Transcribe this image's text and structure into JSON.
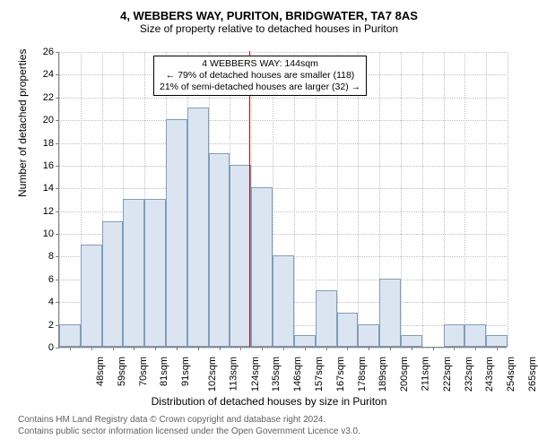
{
  "titles": {
    "main": "4, WEBBERS WAY, PURITON, BRIDGWATER, TA7 8AS",
    "sub": "Size of property relative to detached houses in Puriton"
  },
  "axes": {
    "y_label": "Number of detached properties",
    "x_label": "Distribution of detached houses by size in Puriton",
    "y_min": 0,
    "y_max": 26,
    "y_tick_step": 2,
    "title_fontsize": 13,
    "sub_fontsize": 12,
    "axis_label_fontsize": 12,
    "tick_fontsize": 11
  },
  "bars": {
    "categories": [
      "48sqm",
      "59sqm",
      "70sqm",
      "81sqm",
      "91sqm",
      "102sqm",
      "113sqm",
      "124sqm",
      "135sqm",
      "146sqm",
      "157sqm",
      "167sqm",
      "178sqm",
      "189sqm",
      "200sqm",
      "211sqm",
      "222sqm",
      "232sqm",
      "243sqm",
      "254sqm",
      "265sqm"
    ],
    "values": [
      2,
      9,
      11,
      13,
      13,
      20,
      21,
      17,
      16,
      14,
      8,
      1,
      5,
      3,
      2,
      6,
      1,
      0,
      2,
      2,
      1
    ],
    "bar_fill": "#dbe5f1",
    "bar_border": "#7f9db9",
    "bar_width_ratio": 1.0
  },
  "marker": {
    "color": "#cc0000",
    "fractional_index": 8.9,
    "annotation_lines": [
      "4 WEBBERS WAY: 144sqm",
      "← 79% of detached houses are smaller (118)",
      "21% of semi-detached houses are larger (32) →"
    ]
  },
  "colors": {
    "background": "#ffffff",
    "grid": "#c0c0c0",
    "axis": "#808080",
    "text": "#000000"
  },
  "footer": {
    "line1": "Contains HM Land Registry data © Crown copyright and database right 2024.",
    "line2": "Contains public sector information licensed under the Open Government Licence v3.0."
  }
}
